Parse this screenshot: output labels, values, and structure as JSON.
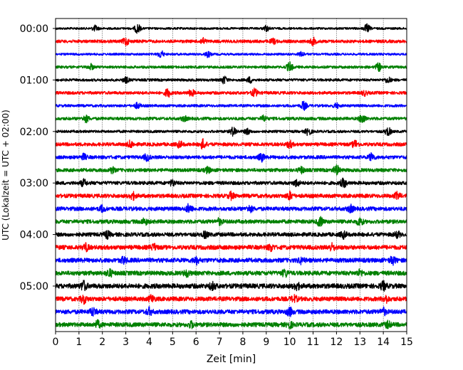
{
  "chart_data": {
    "type": "line",
    "title": "",
    "xlabel": "Zeit  [min]",
    "ylabel": "UTC (Lokalzeit = UTC + 02:00)",
    "xlim": [
      0,
      15
    ],
    "xticks": [
      0,
      1,
      2,
      3,
      4,
      5,
      6,
      7,
      8,
      9,
      10,
      11,
      12,
      13,
      14,
      15
    ],
    "yticks": [
      "00:00",
      "01:00",
      "02:00",
      "03:00",
      "04:00",
      "05:00"
    ],
    "trace_interval_min": 15,
    "grid": "vertical dotted",
    "colors": [
      "#000000",
      "#ff0000",
      "#0000ff",
      "#008000"
    ],
    "traces": [
      {
        "start": "00:00",
        "color": "#000000",
        "level": 0.25,
        "bursts": [
          {
            "t": 1.7,
            "amp": 0.6
          },
          {
            "t": 3.5,
            "amp": 1.0
          },
          {
            "t": 9.0,
            "amp": 0.6
          },
          {
            "t": 13.3,
            "amp": 0.9
          }
        ]
      },
      {
        "start": "00:15",
        "color": "#ff0000",
        "level": 0.35,
        "bursts": [
          {
            "t": 3.0,
            "amp": 0.8
          },
          {
            "t": 6.3,
            "amp": 0.6
          },
          {
            "t": 9.3,
            "amp": 0.5
          },
          {
            "t": 11.0,
            "amp": 0.7
          }
        ]
      },
      {
        "start": "00:30",
        "color": "#0000ff",
        "level": 0.25,
        "bursts": [
          {
            "t": 4.5,
            "amp": 0.8
          },
          {
            "t": 6.5,
            "amp": 0.6
          },
          {
            "t": 10.5,
            "amp": 0.5
          }
        ]
      },
      {
        "start": "00:45",
        "color": "#008000",
        "level": 0.3,
        "bursts": [
          {
            "t": 1.5,
            "amp": 0.6
          },
          {
            "t": 10.0,
            "amp": 1.0
          },
          {
            "t": 13.8,
            "amp": 0.8
          }
        ]
      },
      {
        "start": "01:00",
        "color": "#000000",
        "level": 0.3,
        "bursts": [
          {
            "t": 3.0,
            "amp": 0.6
          },
          {
            "t": 7.2,
            "amp": 0.8
          },
          {
            "t": 8.3,
            "amp": 0.6
          },
          {
            "t": 14.2,
            "amp": 0.6
          }
        ]
      },
      {
        "start": "01:15",
        "color": "#ff0000",
        "level": 0.35,
        "bursts": [
          {
            "t": 4.8,
            "amp": 0.9
          },
          {
            "t": 5.8,
            "amp": 0.7
          },
          {
            "t": 8.5,
            "amp": 0.8
          },
          {
            "t": 13.2,
            "amp": 0.5
          }
        ]
      },
      {
        "start": "01:30",
        "color": "#0000ff",
        "level": 0.3,
        "bursts": [
          {
            "t": 3.5,
            "amp": 0.6
          },
          {
            "t": 10.6,
            "amp": 0.9
          },
          {
            "t": 12.0,
            "amp": 0.5
          }
        ]
      },
      {
        "start": "01:45",
        "color": "#008000",
        "level": 0.35,
        "bursts": [
          {
            "t": 1.3,
            "amp": 0.7
          },
          {
            "t": 5.5,
            "amp": 0.5
          },
          {
            "t": 8.9,
            "amp": 0.6
          },
          {
            "t": 13.1,
            "amp": 1.0
          }
        ]
      },
      {
        "start": "02:00",
        "color": "#000000",
        "level": 0.3,
        "bursts": [
          {
            "t": 7.6,
            "amp": 1.0
          },
          {
            "t": 8.2,
            "amp": 0.6
          },
          {
            "t": 10.8,
            "amp": 0.8
          },
          {
            "t": 14.2,
            "amp": 0.9
          }
        ]
      },
      {
        "start": "02:15",
        "color": "#ff0000",
        "level": 0.4,
        "bursts": [
          {
            "t": 3.2,
            "amp": 0.7
          },
          {
            "t": 5.3,
            "amp": 0.6
          },
          {
            "t": 6.3,
            "amp": 1.0
          },
          {
            "t": 10.0,
            "amp": 0.7
          },
          {
            "t": 12.8,
            "amp": 0.8
          }
        ]
      },
      {
        "start": "02:30",
        "color": "#0000ff",
        "level": 0.4,
        "bursts": [
          {
            "t": 1.2,
            "amp": 0.6
          },
          {
            "t": 3.9,
            "amp": 0.7
          },
          {
            "t": 8.8,
            "amp": 0.8
          },
          {
            "t": 13.5,
            "amp": 0.8
          }
        ]
      },
      {
        "start": "02:45",
        "color": "#008000",
        "level": 0.4,
        "bursts": [
          {
            "t": 2.4,
            "amp": 0.6
          },
          {
            "t": 6.5,
            "amp": 0.6
          },
          {
            "t": 10.5,
            "amp": 0.6
          },
          {
            "t": 12.0,
            "amp": 1.0
          }
        ]
      },
      {
        "start": "03:00",
        "color": "#000000",
        "level": 0.4,
        "bursts": [
          {
            "t": 1.2,
            "amp": 0.7
          },
          {
            "t": 5.0,
            "amp": 0.6
          },
          {
            "t": 10.3,
            "amp": 0.7
          },
          {
            "t": 12.3,
            "amp": 0.9
          }
        ]
      },
      {
        "start": "03:15",
        "color": "#ff0000",
        "level": 0.45,
        "bursts": [
          {
            "t": 3.3,
            "amp": 0.7
          },
          {
            "t": 7.5,
            "amp": 0.7
          },
          {
            "t": 10.0,
            "amp": 0.8
          },
          {
            "t": 14.6,
            "amp": 0.7
          }
        ]
      },
      {
        "start": "03:30",
        "color": "#0000ff",
        "level": 0.45,
        "bursts": [
          {
            "t": 2.0,
            "amp": 0.6
          },
          {
            "t": 5.7,
            "amp": 0.9
          },
          {
            "t": 8.3,
            "amp": 0.6
          },
          {
            "t": 12.6,
            "amp": 0.7
          }
        ]
      },
      {
        "start": "03:45",
        "color": "#008000",
        "level": 0.45,
        "bursts": [
          {
            "t": 3.8,
            "amp": 0.6
          },
          {
            "t": 7.0,
            "amp": 0.6
          },
          {
            "t": 11.3,
            "amp": 0.9
          },
          {
            "t": 13.0,
            "amp": 0.8
          }
        ]
      },
      {
        "start": "04:00",
        "color": "#000000",
        "level": 0.45,
        "bursts": [
          {
            "t": 2.2,
            "amp": 0.7
          },
          {
            "t": 6.4,
            "amp": 0.6
          },
          {
            "t": 12.3,
            "amp": 0.7
          },
          {
            "t": 14.6,
            "amp": 0.6
          }
        ]
      },
      {
        "start": "04:15",
        "color": "#ff0000",
        "level": 0.5,
        "bursts": [
          {
            "t": 1.3,
            "amp": 0.7
          },
          {
            "t": 4.2,
            "amp": 0.6
          },
          {
            "t": 9.2,
            "amp": 0.6
          },
          {
            "t": 11.8,
            "amp": 0.7
          }
        ]
      },
      {
        "start": "04:30",
        "color": "#0000ff",
        "level": 0.5,
        "bursts": [
          {
            "t": 2.9,
            "amp": 0.6
          },
          {
            "t": 6.0,
            "amp": 0.7
          },
          {
            "t": 10.5,
            "amp": 0.6
          },
          {
            "t": 14.4,
            "amp": 0.8
          }
        ]
      },
      {
        "start": "04:45",
        "color": "#008000",
        "level": 0.5,
        "bursts": [
          {
            "t": 2.3,
            "amp": 0.8
          },
          {
            "t": 5.6,
            "amp": 0.6
          },
          {
            "t": 9.8,
            "amp": 0.7
          },
          {
            "t": 13.0,
            "amp": 0.6
          }
        ]
      },
      {
        "start": "05:00",
        "color": "#000000",
        "level": 0.55,
        "bursts": [
          {
            "t": 1.2,
            "amp": 1.0
          },
          {
            "t": 6.7,
            "amp": 0.7
          },
          {
            "t": 10.3,
            "amp": 0.7
          },
          {
            "t": 14.0,
            "amp": 0.8
          }
        ]
      },
      {
        "start": "05:15",
        "color": "#ff0000",
        "level": 0.5,
        "bursts": [
          {
            "t": 1.2,
            "amp": 0.8
          },
          {
            "t": 4.1,
            "amp": 0.7
          },
          {
            "t": 10.2,
            "amp": 0.6
          },
          {
            "t": 14.1,
            "amp": 0.7
          }
        ]
      },
      {
        "start": "05:30",
        "color": "#0000ff",
        "level": 0.5,
        "bursts": [
          {
            "t": 1.6,
            "amp": 0.8
          },
          {
            "t": 4.0,
            "amp": 0.7
          },
          {
            "t": 10.0,
            "amp": 0.8
          },
          {
            "t": 14.0,
            "amp": 0.7
          }
        ]
      },
      {
        "start": "05:45",
        "color": "#008000",
        "level": 0.5,
        "bursts": [
          {
            "t": 1.8,
            "amp": 0.7
          },
          {
            "t": 5.8,
            "amp": 0.6
          },
          {
            "t": 10.0,
            "amp": 0.6
          },
          {
            "t": 14.2,
            "amp": 0.6
          }
        ]
      }
    ]
  }
}
